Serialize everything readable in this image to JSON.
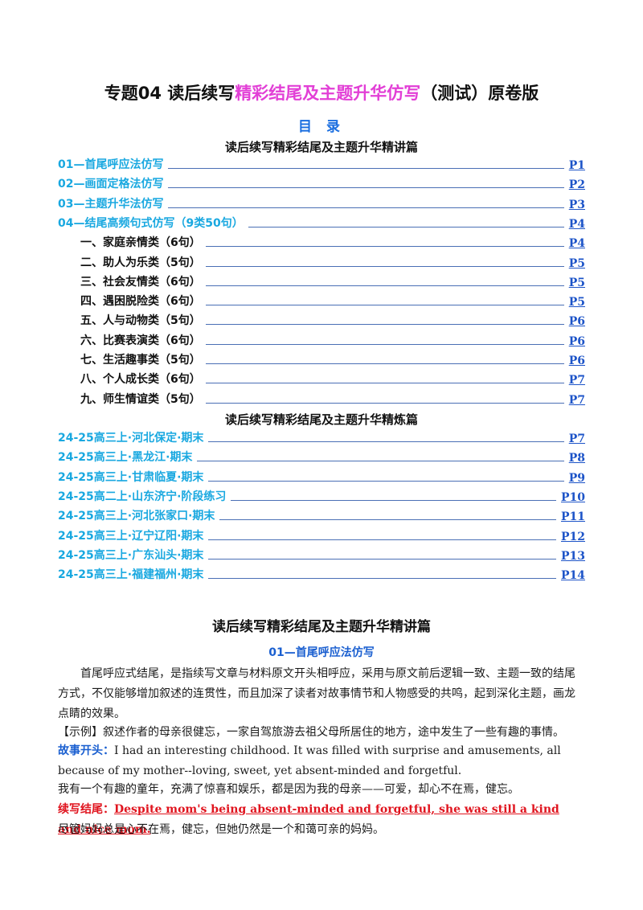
{
  "title": {
    "part1": "专题04  读后续写",
    "highlight": "精彩结尾及主题升华仿写",
    "part2": "（测试）原卷版"
  },
  "toc": {
    "heading": "目  录",
    "section1_title": "读后续写精彩结尾及主题升华精讲篇",
    "section1_items": [
      {
        "label": "01—首尾呼应法仿写",
        "page": "P1",
        "sub": false
      },
      {
        "label": "02—画面定格法仿写",
        "page": "P2",
        "sub": false
      },
      {
        "label": "03—主题升华法仿写",
        "page": "P3",
        "sub": false
      },
      {
        "label": "04—结尾高频句式仿写（9类50句）",
        "page": "P4",
        "sub": false
      },
      {
        "label": "一、家庭亲情类（6句）",
        "page": "P4",
        "sub": true
      },
      {
        "label": "二、助人为乐类（5句）",
        "page": "P5",
        "sub": true
      },
      {
        "label": "三、社会友情类（6句）",
        "page": "P5",
        "sub": true
      },
      {
        "label": "四、遇困脱险类（6句）",
        "page": "P5",
        "sub": true
      },
      {
        "label": "五、人与动物类（5句）",
        "page": "P6",
        "sub": true
      },
      {
        "label": "六、比赛表演类（6句）",
        "page": "P6",
        "sub": true
      },
      {
        "label": "七、生活趣事类（5句）",
        "page": "P6",
        "sub": true
      },
      {
        "label": "八、个人成长类（6句）",
        "page": "P7",
        "sub": true
      },
      {
        "label": "九、师生情谊类（5句）",
        "page": "P7",
        "sub": true
      }
    ],
    "section2_title": "读后续写精彩结尾及主题升华精炼篇",
    "section2_items": [
      {
        "label": "24-25高三上·河北保定·期末",
        "page": "P7"
      },
      {
        "label": "24-25高三上·黑龙江·期末",
        "page": "P8"
      },
      {
        "label": "24-25高三上·甘肃临夏·期末",
        "page": "P9"
      },
      {
        "label": "24-25高二上·山东济宁·阶段练习",
        "page": "P10"
      },
      {
        "label": "24-25高三上·河北张家口·期末",
        "page": "P11"
      },
      {
        "label": "24-25高三上·辽宁辽阳·期末",
        "page": "P12"
      },
      {
        "label": "24-25高三上·广东汕头·期末",
        "page": "P13"
      },
      {
        "label": "24-25高三上·福建福州·期末",
        "page": "P14"
      }
    ]
  },
  "body": {
    "heading": "读后续写精彩结尾及主题升华精讲篇",
    "subheading": "01—首尾呼应法仿写",
    "intro": "首尾呼应式结尾，是指续写文章与材料原文开头相呼应，采用与原文前后逻辑一致、主题一致的结尾方式，不仅能够增加叙述的连贯性，而且加深了读者对故事情节和人物感受的共鸣，起到深化主题，画龙点睛的效果。",
    "example": "【示例】叙述作者的母亲很健忘，一家自驾旅游去祖父母所居住的地方，途中发生了一些有趣的事情。",
    "story_label": "故事开头：",
    "story_en": "I had an interesting childhood. It was filled with surprise and amusements, all because of my mother--loving, sweet, yet absent-minded and forgetful.",
    "story_cn": "我有一个有趣的童年，充满了惊喜和娱乐，都是因为我的母亲——可爱，却心不在焉，健忘。",
    "ending_label": "续写结尾：",
    "ending_en": "Despite mom's being absent-minded and forgetful, she was still a kind and nice mom.",
    "ending_cn": "尽管妈妈总是心不在焉，健忘，但她仍然是一个和蔼可亲的妈妈。"
  },
  "colors": {
    "highlight": "#e23fd6",
    "toc_blue": "#19a8e0",
    "link_blue": "#1d54c8",
    "red": "#e0141e"
  }
}
